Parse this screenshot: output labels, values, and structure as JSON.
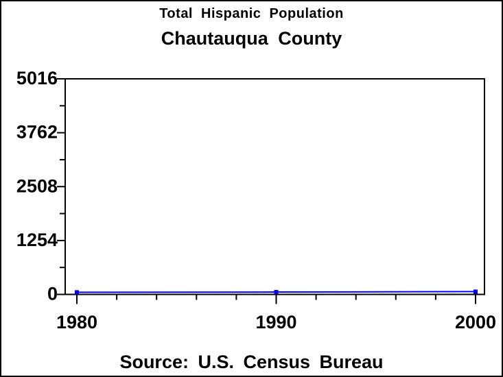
{
  "chart_data": {
    "type": "line",
    "title": "Total Hispanic Population",
    "subtitle": "Chautauqua County",
    "source": "Source: U.S. Census Bureau",
    "x": [
      1980,
      1990,
      2000
    ],
    "series": [
      {
        "name": "Total Hispanic Population",
        "values": [
          50,
          55,
          65
        ],
        "color": "#0000ff",
        "marker": "square"
      }
    ],
    "xlabel": "",
    "ylabel": "",
    "xlim": [
      1980,
      2000
    ],
    "ylim": [
      0,
      5016
    ],
    "xticks": [
      1980,
      1990,
      2000
    ],
    "xticks_minor": [
      1982,
      1984,
      1986,
      1988,
      1992,
      1994,
      1996,
      1998
    ],
    "yticks": [
      0,
      1254,
      2508,
      3762,
      5016
    ],
    "yticks_minor": [
      627,
      1881,
      3135,
      4389
    ],
    "grid": false,
    "legend": "none",
    "colors": {
      "line": "#0000ff",
      "axis": "#000000",
      "text": "#000000",
      "background": "#ffffff"
    }
  }
}
